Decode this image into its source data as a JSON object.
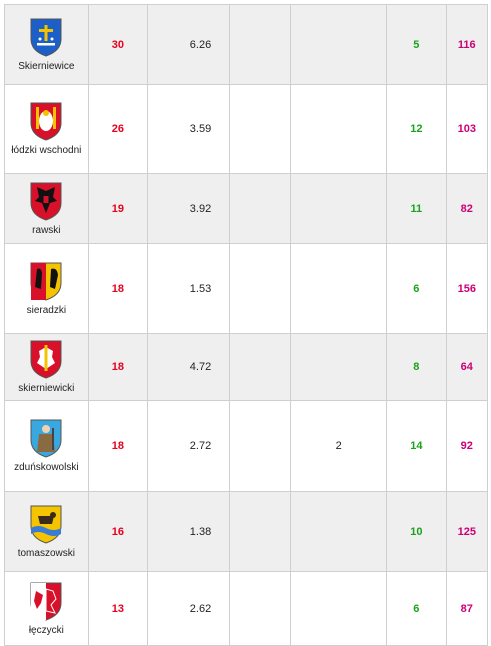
{
  "rows": [
    {
      "name": "Skierniewice",
      "crest": "skierniewice-crest-icon",
      "colors": {
        "field": "#1c5fc7",
        "charge": "#f5c400"
      },
      "a": "30",
      "b": "6.26",
      "c": "",
      "d": "",
      "e": "5",
      "f": "116"
    },
    {
      "name": "łódzki wschodni",
      "crest": "lodzki-wschodni-crest-icon",
      "colors": {
        "field": "#d8102a",
        "charge": "#f5c400"
      },
      "a": "26",
      "b": "3.59",
      "c": "",
      "d": "",
      "e": "12",
      "f": "103"
    },
    {
      "name": "rawski",
      "crest": "rawski-crest-icon",
      "colors": {
        "field": "#d8102a",
        "charge": "#111111"
      },
      "a": "19",
      "b": "3.92",
      "c": "",
      "d": "",
      "e": "11",
      "f": "82"
    },
    {
      "name": "sieradzki",
      "crest": "sieradzki-crest-icon",
      "colors": {
        "field": "#f5c400",
        "charge": "#d8102a"
      },
      "a": "18",
      "b": "1.53",
      "c": "",
      "d": "",
      "e": "6",
      "f": "156"
    },
    {
      "name": "skierniewicki",
      "crest": "skierniewicki-crest-icon",
      "colors": {
        "field": "#d8102a",
        "charge": "#ffffff"
      },
      "a": "18",
      "b": "4.72",
      "c": "",
      "d": "",
      "e": "8",
      "f": "64"
    },
    {
      "name": "zduńskowolski",
      "crest": "zdunskowolski-crest-icon",
      "colors": {
        "field": "#3aa8e0",
        "charge": "#8a6a40"
      },
      "a": "18",
      "b": "2.72",
      "c": "",
      "d": "2",
      "e": "14",
      "f": "92"
    },
    {
      "name": "tomaszowski",
      "crest": "tomaszowski-crest-icon",
      "colors": {
        "field": "#f5c400",
        "charge": "#3a7bd5"
      },
      "a": "16",
      "b": "1.38",
      "c": "",
      "d": "",
      "e": "10",
      "f": "125"
    },
    {
      "name": "łęczycki",
      "crest": "leczycki-crest-icon",
      "colors": {
        "field": "#d8102a",
        "charge": "#ffffff"
      },
      "a": "13",
      "b": "2.62",
      "c": "",
      "d": "",
      "e": "6",
      "f": "87"
    }
  ]
}
